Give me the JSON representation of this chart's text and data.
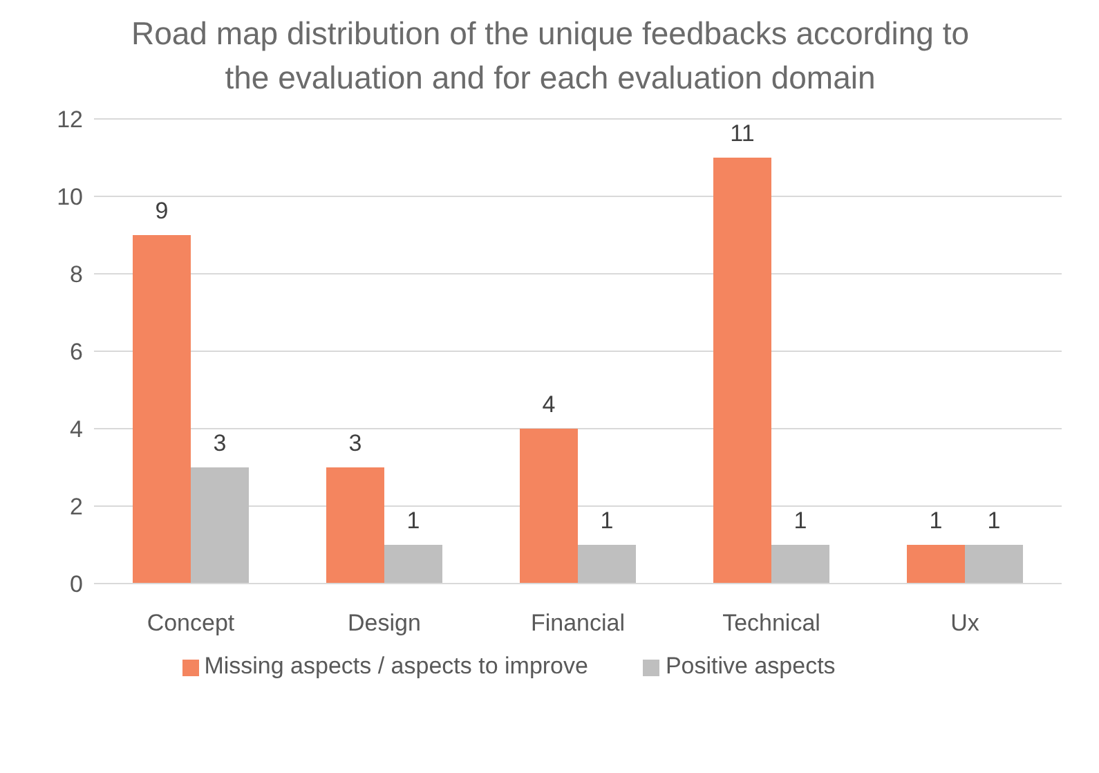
{
  "chart_data": {
    "type": "bar",
    "title": "Road map distribution of the unique feedbacks according to the evaluation and for each evaluation domain",
    "categories": [
      "Concept",
      "Design",
      "Financial",
      "Technical",
      "Ux"
    ],
    "series": [
      {
        "name": "Missing aspects / aspects to improve",
        "color": "#f4855f",
        "values": [
          9,
          3,
          4,
          11,
          1
        ]
      },
      {
        "name": "Positive aspects",
        "color": "#bfbfbf",
        "values": [
          3,
          1,
          1,
          1,
          1
        ]
      }
    ],
    "ylim": [
      0,
      12
    ],
    "yticks": [
      0,
      2,
      4,
      6,
      8,
      10,
      12
    ],
    "grid": "y",
    "legend": "bottom",
    "data_labels": true
  }
}
